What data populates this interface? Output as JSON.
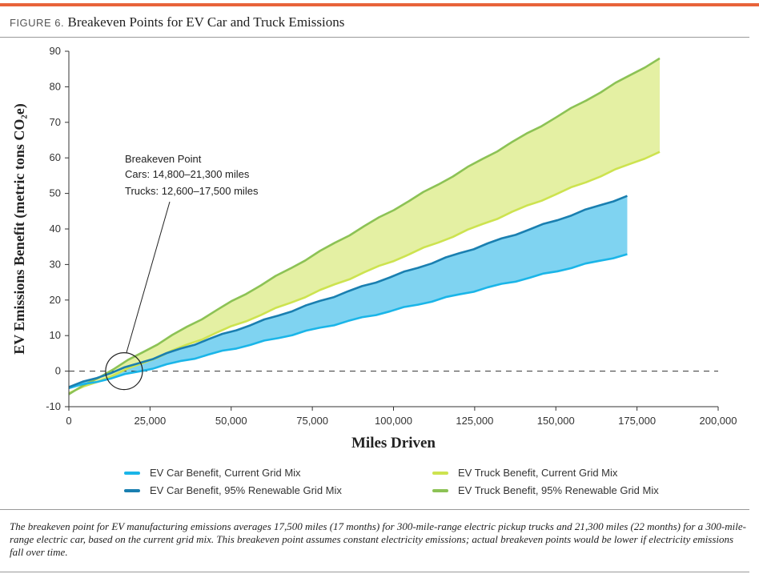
{
  "figure": {
    "label": "FIGURE 6.",
    "title": "Breakeven Points for EV Car and Truck Emissions",
    "caption": "The breakeven point for EV manufacturing emissions averages 17,500 miles (17 months) for 300-mile-range electric pickup trucks and 21,300 miles (22 months) for a 300-mile-range electric car, based on the current grid mix. This breakeven point assumes constant electricity emissions; actual breakeven points would be lower if electricity emissions fall over time."
  },
  "colors": {
    "car_current": "#1ab5e8",
    "car_renewable": "#1a7fb0",
    "car_fill": "#7fd3f1",
    "truck_current": "#cde34f",
    "truck_renewable": "#8cc255",
    "truck_fill": "#e4f0a3",
    "accent_rule": "#e8633a"
  },
  "annotation": {
    "title": "Breakeven Point",
    "line1": "Cars: 14,800–21,300 miles",
    "line2": "Trucks: 12,600–17,500 miles",
    "circle_center_x": 17000,
    "circle_center_y": 0
  },
  "chart_data": {
    "type": "area",
    "xlabel": "Miles Driven",
    "ylabel": "EV Emissions Benefit (metric tons CO₂e)",
    "xlim": [
      0,
      200000
    ],
    "ylim": [
      -10,
      90
    ],
    "x_ticks": [
      0,
      25000,
      50000,
      75000,
      100000,
      125000,
      150000,
      175000,
      200000
    ],
    "x_tick_labels": [
      "0",
      "25,000",
      "50,000",
      "75,000",
      "100,000",
      "125,000",
      "150,000",
      "175,000",
      "200,000"
    ],
    "y_ticks": [
      -10,
      0,
      10,
      20,
      30,
      40,
      50,
      60,
      70,
      80,
      90
    ],
    "y_tick_labels": [
      "-10",
      "0",
      "10",
      "20",
      "30",
      "40",
      "50",
      "60",
      "70",
      "80",
      "90"
    ],
    "reference_line": {
      "y": 0,
      "style": "dashed"
    },
    "series": [
      {
        "name": "EV Car Benefit, Current Grid Mix",
        "x": [
          0,
          172000
        ],
        "values": [
          -4.8,
          32.9
        ]
      },
      {
        "name": "EV Car Benefit, 95% Renewable Grid Mix",
        "x": [
          0,
          172000
        ],
        "values": [
          -4.5,
          49.3
        ]
      },
      {
        "name": "EV Truck Benefit, Current Grid Mix",
        "x": [
          0,
          182000
        ],
        "values": [
          -6.2,
          61.7
        ]
      },
      {
        "name": "EV Truck Benefit, 95% Renewable Grid Mix",
        "x": [
          0,
          182000
        ],
        "values": [
          -6.5,
          88.0
        ]
      }
    ],
    "bands": [
      {
        "between": [
          "EV Car Benefit, Current Grid Mix",
          "EV Car Benefit, 95% Renewable Grid Mix"
        ]
      },
      {
        "between": [
          "EV Truck Benefit, Current Grid Mix",
          "EV Truck Benefit, 95% Renewable Grid Mix"
        ]
      }
    ]
  }
}
